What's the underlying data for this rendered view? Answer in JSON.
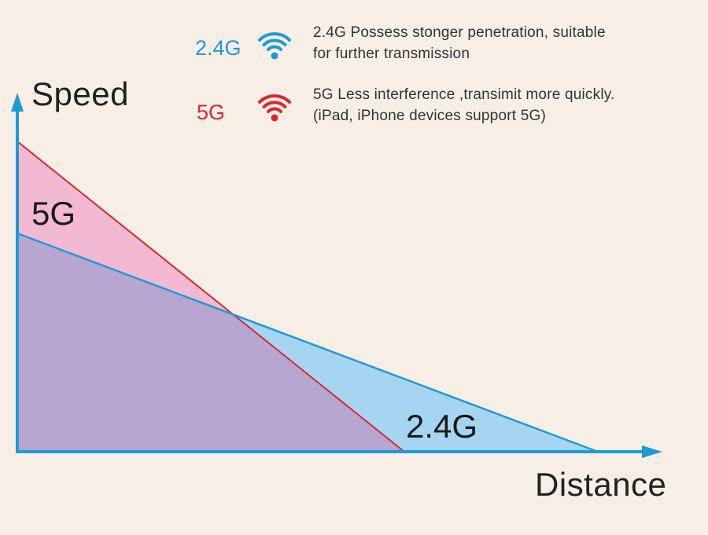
{
  "axes": {
    "y_title": "Speed",
    "x_title": "Distance"
  },
  "regions": {
    "band_5g": "5G",
    "band_24g": "2.4G"
  },
  "legend": {
    "band_24g": {
      "label": "2.4G",
      "line1": "2.4G Possess stonger penetration, suitable",
      "line2": "for further transmission",
      "icon": "wifi-icon",
      "color": "#1e9bd7"
    },
    "band_5g": {
      "label": "5G",
      "line1": "5G Less interference ,transimit more quickly.",
      "line2": "(iPad, iPhone devices support 5G)",
      "icon": "wifi-icon",
      "color": "#d7282f"
    }
  },
  "colors": {
    "axis": "#1e9bd7",
    "line_24g": "#1e9bd7",
    "line_5g": "#d7282f",
    "fill_24g": "#a6d5f2",
    "fill_5g": "#f3b9d2",
    "fill_overlap": "#b7a6cf"
  }
}
